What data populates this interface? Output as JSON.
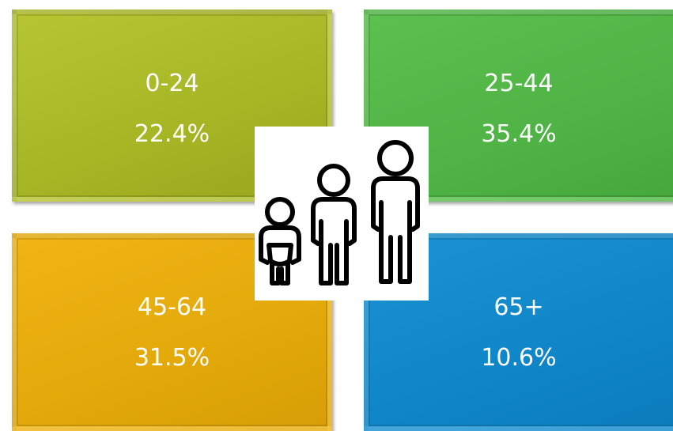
{
  "tiles": [
    {
      "label": "0-24",
      "value": "22.4%"
    },
    {
      "label": "25-44",
      "value": "35.4%"
    },
    {
      "label": "45-64",
      "value": "31.5%"
    },
    {
      "label": "65+",
      "value": "10.6%"
    }
  ]
}
